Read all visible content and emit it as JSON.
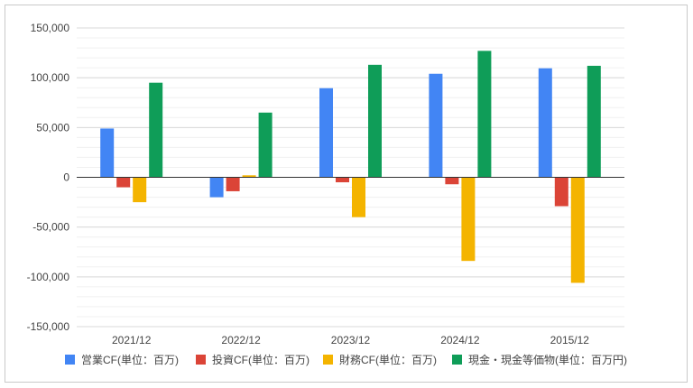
{
  "chart_data": {
    "type": "bar",
    "title": "",
    "xlabel": "",
    "ylabel": "",
    "categories": [
      "2021/12",
      "2022/12",
      "2023/12",
      "2024/12",
      "2015/12"
    ],
    "ylim": [
      -150000,
      150000
    ],
    "yticks": [
      150000,
      100000,
      50000,
      0,
      -50000,
      -100000,
      -150000
    ],
    "ytick_labels": [
      "150,000",
      "100,000",
      "50,000",
      "0",
      "-50,000",
      "-100,000",
      "-150,000"
    ],
    "grid": true,
    "legend_position": "bottom",
    "series": [
      {
        "name": "営業CF(単位：百万)",
        "color": "#4285f4",
        "values": [
          49000,
          -20000,
          89500,
          104000,
          109500
        ]
      },
      {
        "name": "投資CF(単位：百万)",
        "color": "#db4437",
        "values": [
          -10000,
          -14000,
          -5000,
          -7000,
          -29000
        ]
      },
      {
        "name": "財務CF(単位：百万)",
        "color": "#f4b400",
        "values": [
          -25000,
          2000,
          -40000,
          -84000,
          -106000
        ]
      },
      {
        "name": "現金・現金等価物(単位：百万円)",
        "color": "#0f9d58",
        "values": [
          95000,
          65000,
          113000,
          127000,
          112000
        ]
      }
    ]
  }
}
